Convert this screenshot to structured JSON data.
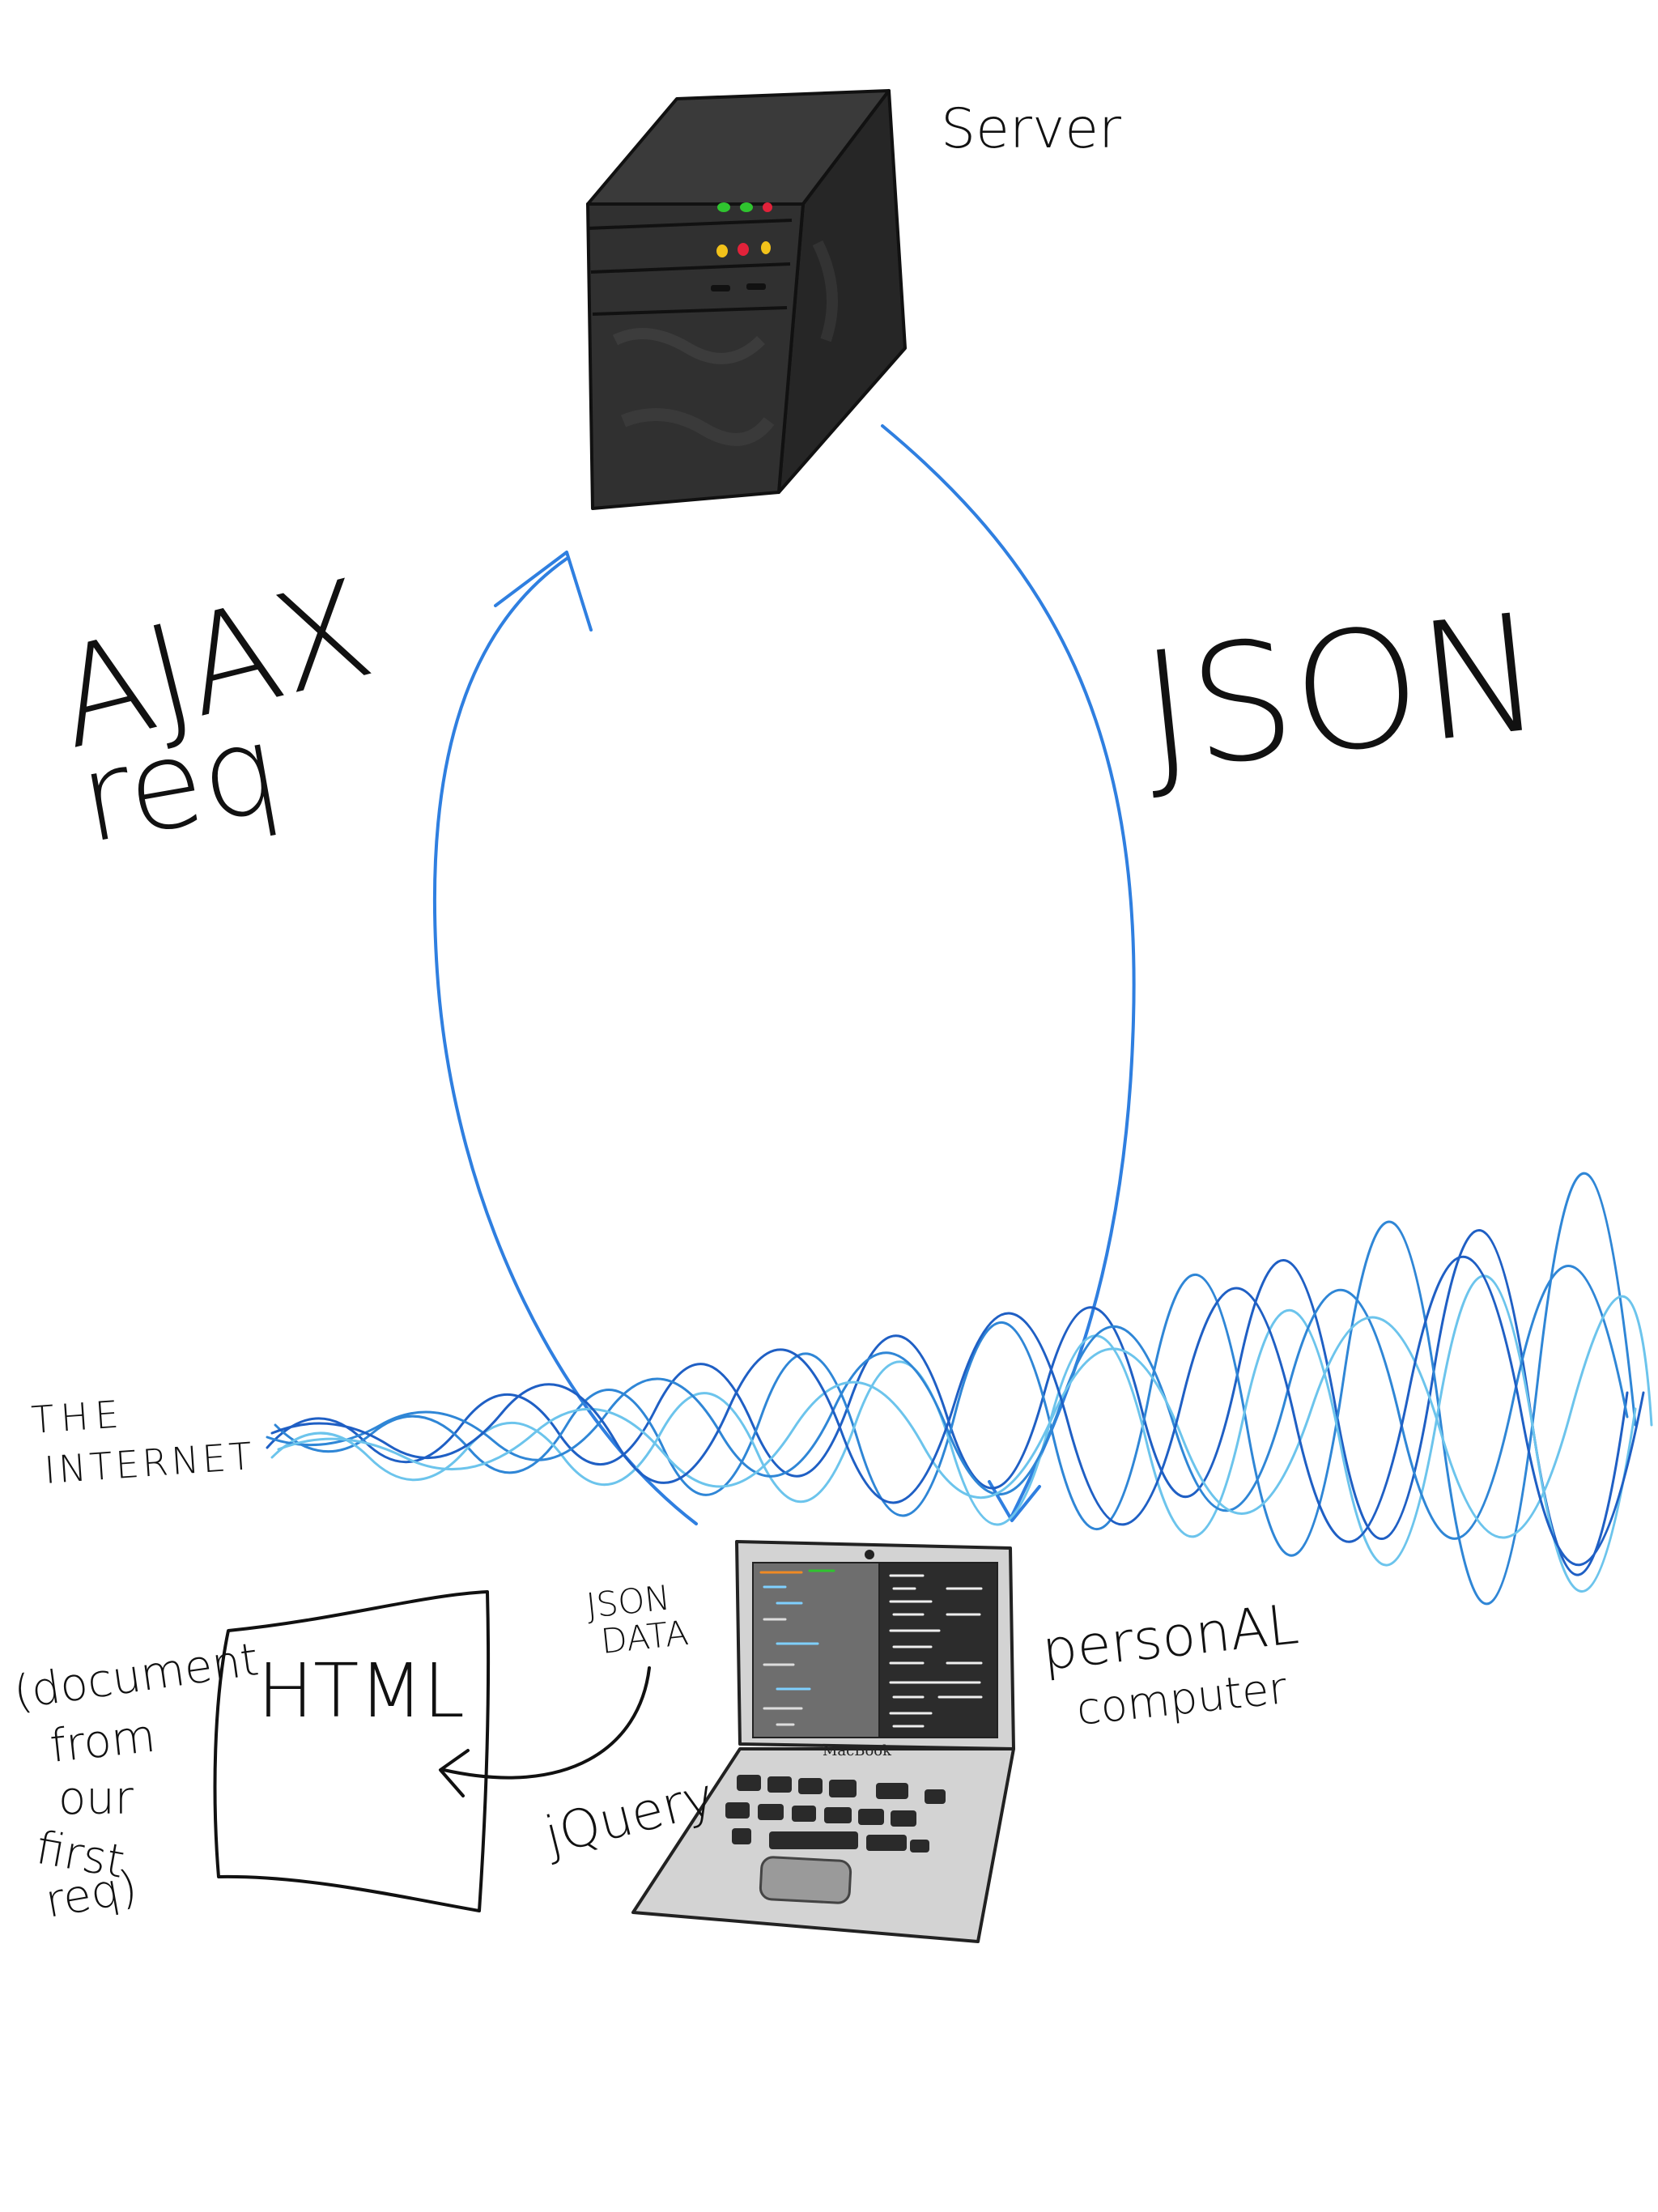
{
  "labels": {
    "server": "Server",
    "ajax_line1": "AJAX",
    "ajax_line2": "req",
    "json_big": "JSON",
    "internet_line1": "THE",
    "internet_line2": "INTERNET",
    "personal_line1": "personAL",
    "personal_line2": "computer",
    "json_data_line1": "JSON",
    "json_data_line2": "DATA",
    "jquery": "jQuery",
    "html_box": "HTML",
    "doc_note": [
      "(document",
      "from",
      "our",
      "first",
      "req)"
    ],
    "macbook": "MacBook"
  },
  "icons": {
    "server": "server-tower-icon",
    "laptop": "laptop-icon"
  },
  "colors": {
    "arrow": "#2f7fe0",
    "wave_dark": "#1f5fc4",
    "wave_mid": "#2f86d6",
    "wave_light": "#6cc4ec",
    "server_body": "#2e2e2e",
    "laptop_body": "#d3d3d3",
    "led_green": "#2fc42f",
    "led_red": "#e2223a",
    "led_yellow": "#f2c21a"
  }
}
